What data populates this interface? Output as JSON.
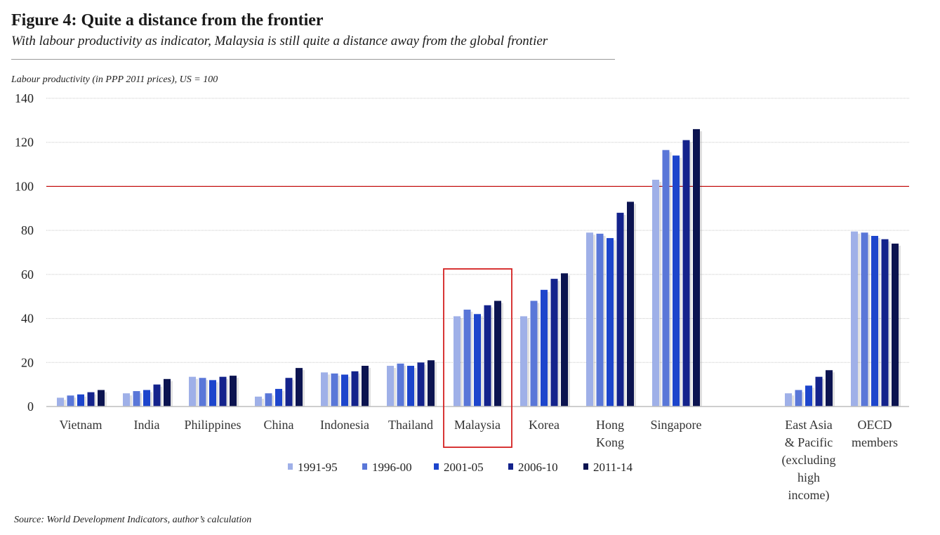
{
  "figure": {
    "title": "Figure 4: Quite a distance from the frontier",
    "subtitle": "With labour productivity as indicator, Malaysia is still quite a distance away from the global frontier",
    "source": "Source: World Development Indicators, author’s calculation"
  },
  "chart_data": {
    "type": "bar",
    "ylabel": "Labour productivity (in PPP 2011 prices), US = 100",
    "ylim": [
      0,
      140
    ],
    "yticks": [
      "0",
      "20",
      "40",
      "60",
      "80",
      "100",
      "120",
      "140"
    ],
    "grid": true,
    "reference_line": {
      "value": 100,
      "color": "#c00000"
    },
    "highlight_category": "Malaysia",
    "highlight_color": "#d42020",
    "legend_position": "bottom",
    "categories": [
      {
        "label_lines": [
          "Vietnam"
        ]
      },
      {
        "label_lines": [
          "India"
        ]
      },
      {
        "label_lines": [
          "Philippines"
        ]
      },
      {
        "label_lines": [
          "China"
        ]
      },
      {
        "label_lines": [
          "Indonesia"
        ]
      },
      {
        "label_lines": [
          "Thailand"
        ]
      },
      {
        "label_lines": [
          "Malaysia"
        ]
      },
      {
        "label_lines": [
          "Korea"
        ]
      },
      {
        "label_lines": [
          "Hong",
          "Kong"
        ]
      },
      {
        "label_lines": [
          "Singapore"
        ]
      },
      {
        "label_lines": [
          "East Asia",
          "& Pacific",
          "(excluding",
          "high",
          "income)"
        ]
      },
      {
        "label_lines": [
          "OECD",
          "members"
        ]
      }
    ],
    "series": [
      {
        "name": "1991-95",
        "color": "#9fb0e8",
        "values": [
          4,
          6,
          13.5,
          4.5,
          15.5,
          18.5,
          41,
          41,
          79,
          103,
          6,
          79.5
        ]
      },
      {
        "name": "1996-00",
        "color": "#5a77d8",
        "values": [
          5,
          7,
          13,
          6,
          15,
          19.5,
          44,
          48,
          78.5,
          116.5,
          7.5,
          79
        ]
      },
      {
        "name": "2001-05",
        "color": "#1d45cc",
        "values": [
          5.5,
          7.5,
          12,
          8,
          14.5,
          18.5,
          42,
          53,
          76.5,
          114,
          9.5,
          77.5
        ]
      },
      {
        "name": "2006-10",
        "color": "#14238c",
        "values": [
          6.5,
          10,
          13.5,
          13,
          16,
          20,
          46,
          58,
          88,
          121,
          13.5,
          76
        ]
      },
      {
        "name": "2011-14",
        "color": "#0c1450",
        "values": [
          7.5,
          12.5,
          14,
          17.5,
          18.5,
          21,
          48,
          60.5,
          93,
          126,
          16.5,
          74
        ]
      }
    ]
  }
}
